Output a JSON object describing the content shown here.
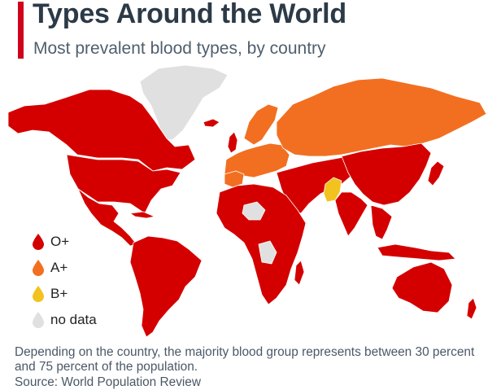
{
  "header": {
    "title": "Types Around the World",
    "subtitle": "Most prevalent blood types, by country"
  },
  "legend": {
    "items": [
      {
        "label": "O+",
        "color": "#d40000",
        "icon": "drop-icon"
      },
      {
        "label": "A+",
        "color": "#f26f21",
        "icon": "drop-icon"
      },
      {
        "label": "B+",
        "color": "#f2c31f",
        "icon": "drop-icon"
      },
      {
        "label": "no data",
        "color": "#e0e0e0",
        "icon": "drop-icon"
      }
    ]
  },
  "map": {
    "colors": {
      "o_pos": "#d40000",
      "a_pos": "#f26f21",
      "b_pos": "#f2c31f",
      "no_data": "#e0e0e0",
      "border": "#ffffff"
    }
  },
  "footer": {
    "note": "Depending on the country, the majority blood group represents between 30 percent and 75 percent of the population.",
    "source": "Source: World Population Review"
  }
}
